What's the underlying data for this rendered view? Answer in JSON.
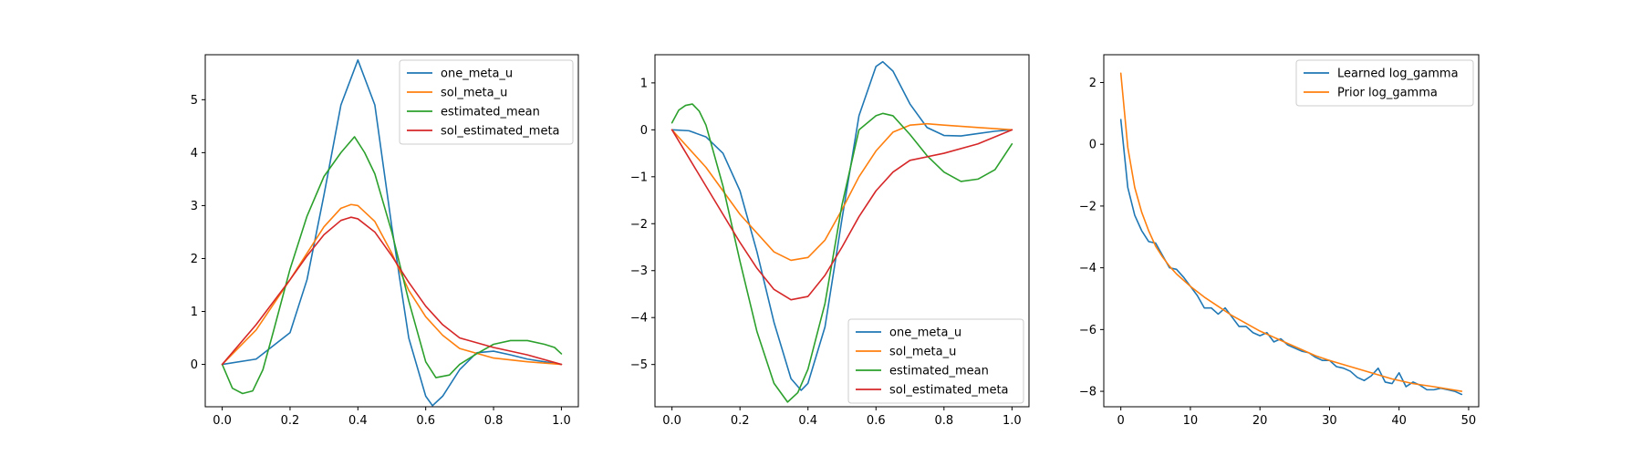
{
  "chart_data": [
    {
      "type": "line",
      "title": "",
      "xlabel": "",
      "ylabel": "",
      "xlim": [
        -0.05,
        1.05
      ],
      "ylim": [
        -0.8,
        5.85
      ],
      "xticks": [
        0.0,
        0.2,
        0.4,
        0.6,
        0.8,
        1.0
      ],
      "xtick_labels": [
        "0.0",
        "0.2",
        "0.4",
        "0.6",
        "0.8",
        "1.0"
      ],
      "yticks": [
        0,
        1,
        2,
        3,
        4,
        5
      ],
      "ytick_labels": [
        "0",
        "1",
        "2",
        "3",
        "4",
        "5"
      ],
      "grid": false,
      "legend_position": "top-right",
      "series": [
        {
          "name": "one_meta_u",
          "color": "#1f77b4",
          "x": [
            0.0,
            0.1,
            0.2,
            0.25,
            0.3,
            0.35,
            0.4,
            0.45,
            0.5,
            0.55,
            0.6,
            0.62,
            0.65,
            0.7,
            0.75,
            0.8,
            0.85,
            0.9,
            0.95,
            1.0
          ],
          "y": [
            0.0,
            0.1,
            0.6,
            1.6,
            3.2,
            4.9,
            5.75,
            4.9,
            2.6,
            0.5,
            -0.6,
            -0.78,
            -0.6,
            -0.1,
            0.22,
            0.25,
            0.18,
            0.1,
            0.05,
            0.0
          ]
        },
        {
          "name": "sol_meta_u",
          "color": "#ff7f0e",
          "x": [
            0.0,
            0.1,
            0.2,
            0.3,
            0.35,
            0.38,
            0.4,
            0.45,
            0.5,
            0.55,
            0.6,
            0.65,
            0.7,
            0.8,
            0.9,
            1.0
          ],
          "y": [
            0.0,
            0.65,
            1.6,
            2.6,
            2.95,
            3.02,
            3.0,
            2.7,
            2.1,
            1.4,
            0.9,
            0.55,
            0.3,
            0.12,
            0.05,
            0.0
          ]
        },
        {
          "name": "estimated_mean",
          "color": "#2ca02c",
          "x": [
            0.0,
            0.03,
            0.06,
            0.09,
            0.12,
            0.15,
            0.2,
            0.25,
            0.3,
            0.35,
            0.39,
            0.42,
            0.45,
            0.5,
            0.55,
            0.6,
            0.63,
            0.67,
            0.7,
            0.75,
            0.8,
            0.85,
            0.9,
            0.95,
            0.98,
            1.0
          ],
          "y": [
            0.0,
            -0.45,
            -0.55,
            -0.5,
            -0.1,
            0.6,
            1.8,
            2.8,
            3.55,
            4.0,
            4.3,
            4.0,
            3.6,
            2.5,
            1.2,
            0.05,
            -0.25,
            -0.2,
            0.0,
            0.2,
            0.38,
            0.45,
            0.45,
            0.38,
            0.32,
            0.2
          ]
        },
        {
          "name": "sol_estimated_meta",
          "color": "#d62728",
          "x": [
            0.0,
            0.1,
            0.2,
            0.25,
            0.3,
            0.35,
            0.38,
            0.4,
            0.45,
            0.5,
            0.55,
            0.6,
            0.65,
            0.7,
            0.8,
            0.9,
            1.0
          ],
          "y": [
            0.0,
            0.75,
            1.6,
            2.05,
            2.45,
            2.72,
            2.78,
            2.75,
            2.5,
            2.05,
            1.55,
            1.1,
            0.75,
            0.5,
            0.32,
            0.18,
            0.0
          ]
        }
      ]
    },
    {
      "type": "line",
      "title": "",
      "xlabel": "",
      "ylabel": "",
      "xlim": [
        -0.05,
        1.05
      ],
      "ylim": [
        -5.9,
        1.6
      ],
      "xticks": [
        0.0,
        0.2,
        0.4,
        0.6,
        0.8,
        1.0
      ],
      "xtick_labels": [
        "0.0",
        "0.2",
        "0.4",
        "0.6",
        "0.8",
        "1.0"
      ],
      "yticks": [
        -5,
        -4,
        -3,
        -2,
        -1,
        0,
        1
      ],
      "ytick_labels": [
        "−5",
        "−4",
        "−3",
        "−2",
        "−1",
        "0",
        "1"
      ],
      "grid": false,
      "legend_position": "bottom-right",
      "series": [
        {
          "name": "one_meta_u",
          "color": "#1f77b4",
          "x": [
            0.0,
            0.05,
            0.1,
            0.15,
            0.2,
            0.25,
            0.3,
            0.35,
            0.38,
            0.4,
            0.45,
            0.5,
            0.55,
            0.6,
            0.62,
            0.65,
            0.7,
            0.75,
            0.8,
            0.85,
            0.9,
            0.95,
            1.0
          ],
          "y": [
            0.0,
            -0.02,
            -0.15,
            -0.5,
            -1.3,
            -2.6,
            -4.1,
            -5.3,
            -5.55,
            -5.4,
            -4.2,
            -1.9,
            0.3,
            1.35,
            1.45,
            1.25,
            0.55,
            0.05,
            -0.12,
            -0.13,
            -0.08,
            -0.03,
            0.0
          ]
        },
        {
          "name": "sol_meta_u",
          "color": "#ff7f0e",
          "x": [
            0.0,
            0.1,
            0.2,
            0.3,
            0.35,
            0.4,
            0.45,
            0.5,
            0.55,
            0.6,
            0.65,
            0.7,
            0.75,
            0.8,
            0.9,
            1.0
          ],
          "y": [
            0.0,
            -0.8,
            -1.8,
            -2.6,
            -2.78,
            -2.72,
            -2.35,
            -1.7,
            -1.0,
            -0.45,
            -0.05,
            0.1,
            0.13,
            0.1,
            0.05,
            0.0
          ]
        },
        {
          "name": "estimated_mean",
          "color": "#2ca02c",
          "x": [
            0.0,
            0.02,
            0.04,
            0.06,
            0.08,
            0.1,
            0.15,
            0.2,
            0.25,
            0.3,
            0.34,
            0.37,
            0.4,
            0.45,
            0.5,
            0.55,
            0.6,
            0.62,
            0.65,
            0.7,
            0.75,
            0.8,
            0.85,
            0.9,
            0.95,
            1.0
          ],
          "y": [
            0.15,
            0.42,
            0.52,
            0.55,
            0.4,
            0.1,
            -1.2,
            -2.8,
            -4.3,
            -5.4,
            -5.8,
            -5.6,
            -5.1,
            -3.7,
            -1.6,
            0.0,
            0.3,
            0.35,
            0.3,
            -0.1,
            -0.55,
            -0.9,
            -1.1,
            -1.05,
            -0.85,
            -0.3
          ]
        },
        {
          "name": "sol_estimated_meta",
          "color": "#d62728",
          "x": [
            0.0,
            0.1,
            0.2,
            0.25,
            0.3,
            0.35,
            0.4,
            0.45,
            0.5,
            0.55,
            0.6,
            0.65,
            0.7,
            0.8,
            0.9,
            1.0
          ],
          "y": [
            0.0,
            -1.2,
            -2.4,
            -2.95,
            -3.4,
            -3.62,
            -3.55,
            -3.1,
            -2.5,
            -1.85,
            -1.3,
            -0.9,
            -0.65,
            -0.5,
            -0.3,
            0.0
          ]
        }
      ]
    },
    {
      "type": "line",
      "title": "",
      "xlabel": "",
      "ylabel": "",
      "xlim": [
        -2.45,
        51.45
      ],
      "ylim": [
        -8.5,
        2.9
      ],
      "xticks": [
        0,
        10,
        20,
        30,
        40,
        50
      ],
      "xtick_labels": [
        "0",
        "10",
        "20",
        "30",
        "40",
        "50"
      ],
      "yticks": [
        -8,
        -6,
        -4,
        -2,
        0,
        2
      ],
      "ytick_labels": [
        "−8",
        "−6",
        "−4",
        "−2",
        "0",
        "2"
      ],
      "grid": false,
      "legend_position": "top-right",
      "series": [
        {
          "name": "Learned log_gamma",
          "color": "#1f77b4",
          "x": [
            0,
            1,
            2,
            3,
            4,
            5,
            6,
            7,
            8,
            9,
            10,
            11,
            12,
            13,
            14,
            15,
            16,
            17,
            18,
            19,
            20,
            21,
            22,
            23,
            24,
            25,
            26,
            27,
            28,
            29,
            30,
            31,
            32,
            33,
            34,
            35,
            36,
            37,
            38,
            39,
            40,
            41,
            42,
            43,
            44,
            45,
            46,
            47,
            48,
            49
          ],
          "y": [
            0.8,
            -1.4,
            -2.3,
            -2.8,
            -3.15,
            -3.2,
            -3.6,
            -4.0,
            -4.05,
            -4.3,
            -4.6,
            -4.9,
            -5.3,
            -5.3,
            -5.5,
            -5.3,
            -5.6,
            -5.9,
            -5.9,
            -6.1,
            -6.2,
            -6.1,
            -6.4,
            -6.3,
            -6.5,
            -6.6,
            -6.7,
            -6.75,
            -6.9,
            -7.0,
            -7.0,
            -7.2,
            -7.25,
            -7.35,
            -7.55,
            -7.65,
            -7.5,
            -7.25,
            -7.7,
            -7.75,
            -7.4,
            -7.85,
            -7.7,
            -7.8,
            -7.95,
            -7.95,
            -7.9,
            -7.95,
            -8.0,
            -8.1
          ]
        },
        {
          "name": "Prior log_gamma",
          "color": "#ff7f0e",
          "x": [
            0,
            1,
            2,
            3,
            4,
            5,
            6,
            7,
            8,
            10,
            12,
            14,
            16,
            18,
            20,
            22,
            25,
            28,
            30,
            33,
            36,
            39,
            42,
            45,
            49
          ],
          "y": [
            2.3,
            -0.1,
            -1.4,
            -2.2,
            -2.8,
            -3.3,
            -3.65,
            -3.95,
            -4.2,
            -4.6,
            -4.95,
            -5.25,
            -5.55,
            -5.8,
            -6.05,
            -6.25,
            -6.55,
            -6.85,
            -7.0,
            -7.2,
            -7.4,
            -7.6,
            -7.75,
            -7.85,
            -8.0
          ]
        }
      ]
    }
  ]
}
